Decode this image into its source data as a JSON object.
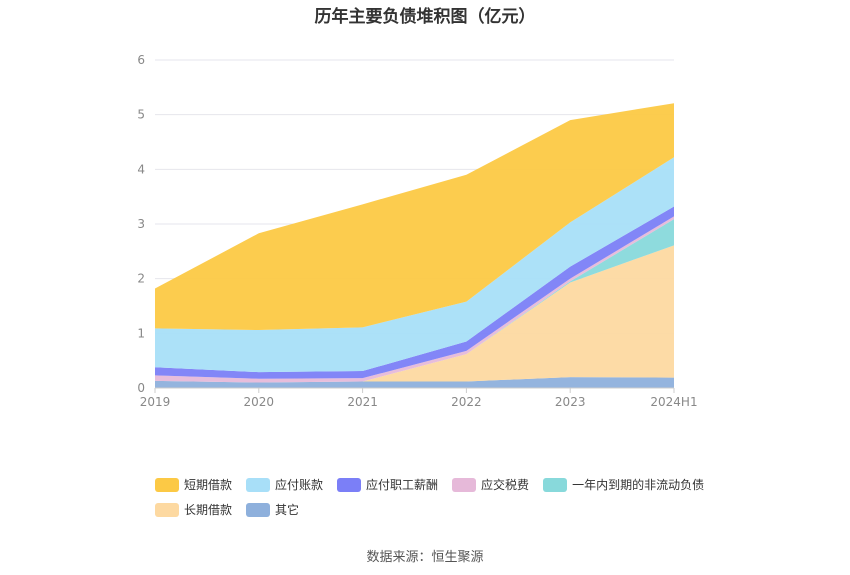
{
  "chart_data": {
    "type": "area",
    "title": "历年主要负债堆积图（亿元）",
    "categories": [
      "2019",
      "2020",
      "2021",
      "2022",
      "2023",
      "2024H1"
    ],
    "ylim": [
      0,
      6
    ],
    "yticks": [
      "0",
      "1",
      "2",
      "3",
      "4",
      "5",
      "6"
    ],
    "grid": true,
    "legend_position": "bottom",
    "stacked": true,
    "series": [
      {
        "name": "其它",
        "color": "#8eb0dc",
        "values": [
          0.13,
          0.1,
          0.12,
          0.12,
          0.2,
          0.19
        ]
      },
      {
        "name": "长期借款",
        "color": "#fdd9a1",
        "values": [
          0.0,
          0.0,
          0.0,
          0.5,
          1.73,
          2.42
        ]
      },
      {
        "name": "一年内到期的非流动负债",
        "color": "#88d9db",
        "values": [
          0.0,
          0.0,
          0.0,
          0.0,
          0.02,
          0.48
        ]
      },
      {
        "name": "应交税费",
        "color": "#e6b9d9",
        "values": [
          0.1,
          0.07,
          0.06,
          0.06,
          0.05,
          0.05
        ]
      },
      {
        "name": "应付职工薪酬",
        "color": "#7b7ff7",
        "values": [
          0.15,
          0.12,
          0.13,
          0.17,
          0.22,
          0.18
        ]
      },
      {
        "name": "应付账款",
        "color": "#a8dff8",
        "values": [
          0.71,
          0.77,
          0.8,
          0.73,
          0.81,
          0.9
        ]
      },
      {
        "name": "短期借款",
        "color": "#fcc945",
        "values": [
          0.73,
          1.77,
          2.25,
          2.32,
          1.87,
          0.99
        ]
      }
    ]
  },
  "legend": {
    "row1": [
      {
        "label": "短期借款",
        "color": "#fcc945"
      },
      {
        "label": "应付账款",
        "color": "#a8dff8"
      },
      {
        "label": "应付职工薪酬",
        "color": "#7b7ff7"
      },
      {
        "label": "应交税费",
        "color": "#e6b9d9"
      },
      {
        "label": "一年内到期的非流动负债",
        "color": "#88d9db"
      }
    ],
    "row2": [
      {
        "label": "长期借款",
        "color": "#fdd9a1"
      },
      {
        "label": "其它",
        "color": "#8eb0dc"
      }
    ]
  },
  "source": "数据来源：恒生聚源"
}
